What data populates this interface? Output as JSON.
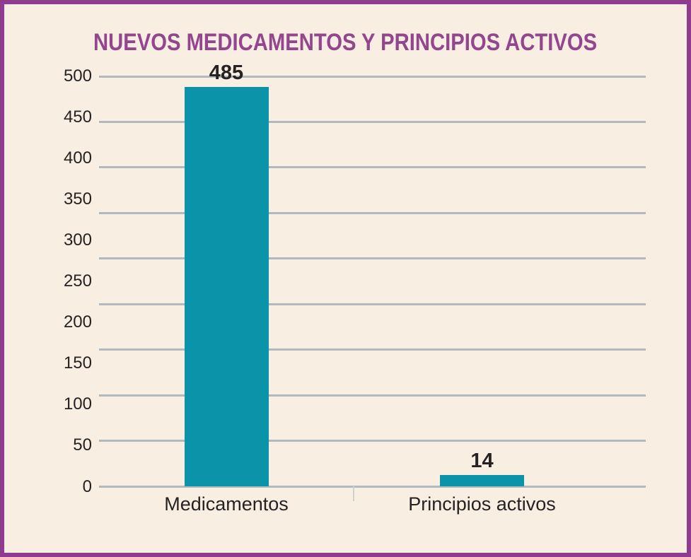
{
  "frame": {
    "background_color": "#f8efe2",
    "border_color": "#8f3b8f"
  },
  "chart_data": {
    "type": "bar",
    "title": "NUEVOS MEDICAMENTOS Y PRINCIPIOS ACTIVOS",
    "title_color": "#93458e",
    "categories": [
      "Medicamentos",
      "Principios activos"
    ],
    "values": [
      485,
      14
    ],
    "value_labels": [
      "485",
      "14"
    ],
    "xlabel": "",
    "ylabel": "",
    "ylim": [
      0,
      500
    ],
    "ytick_step": 50,
    "ytick_labels": [
      "500",
      "450",
      "400",
      "350",
      "300",
      "250",
      "200",
      "150",
      "100",
      "50",
      "0"
    ],
    "grid": true,
    "gridline_count": 10,
    "legend": false,
    "bar_color": "#0a93a9",
    "grid_color": "#b2b9bc",
    "axis_text_color": "#262223"
  }
}
